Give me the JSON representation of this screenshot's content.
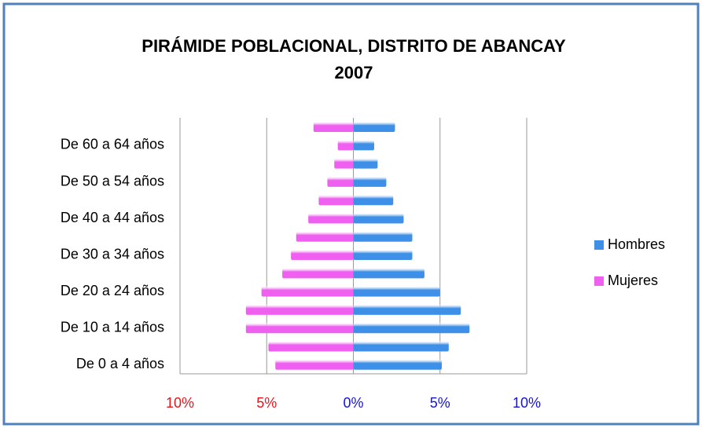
{
  "chart_data": {
    "type": "pyramid",
    "title": [
      "PIRÁMIDE POBLACIONAL, DISTRITO DE ABANCAY",
      "2007"
    ],
    "categories": [
      "De 0 a 4 años",
      null,
      "De 10 a 14 años",
      null,
      "De 20 a 24 años",
      null,
      "De 30 a 34 años",
      null,
      "De 40 a 44 años",
      null,
      "De 50 a 54 años",
      null,
      "De 60 a 64 años",
      null
    ],
    "series": [
      {
        "name": "Hombres",
        "color": "#3d8fe8",
        "values": [
          5.1,
          5.5,
          6.7,
          6.2,
          5.0,
          4.1,
          3.4,
          3.4,
          2.9,
          2.3,
          1.9,
          1.4,
          1.2,
          2.4
        ]
      },
      {
        "name": "Mujeres",
        "color": "#f060f0",
        "values": [
          -4.5,
          -4.9,
          -6.2,
          -6.2,
          -5.3,
          -4.1,
          -3.6,
          -3.3,
          -2.6,
          -2.0,
          -1.5,
          -1.1,
          -0.9,
          -2.3
        ]
      }
    ],
    "xlim": [
      -10,
      10
    ],
    "xticks": [
      {
        "value": -10,
        "label": "10%"
      },
      {
        "value": -5,
        "label": "5%"
      },
      {
        "value": 0,
        "label": "0%"
      },
      {
        "value": 5,
        "label": "5%"
      },
      {
        "value": 10,
        "label": "10%"
      }
    ],
    "grid": true,
    "legend": "right"
  }
}
